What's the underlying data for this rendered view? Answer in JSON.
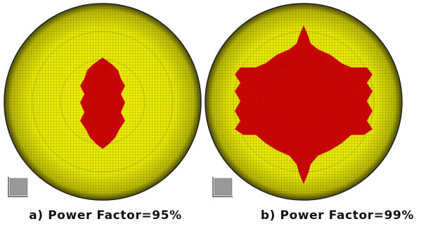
{
  "captions": [
    "a) Power Factor=95%",
    "b) Power Factor=99%"
  ]
}
